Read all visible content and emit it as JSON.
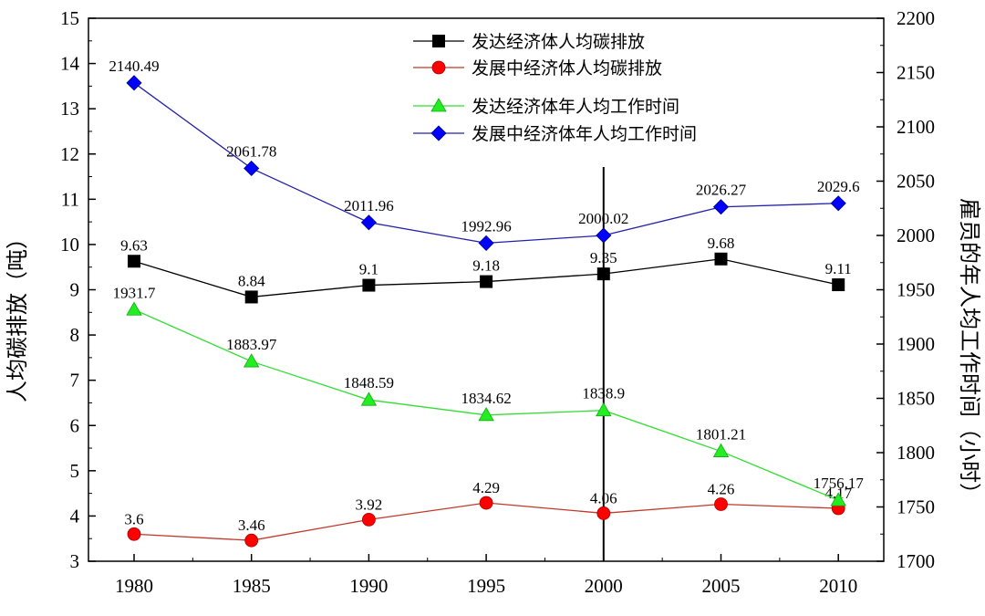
{
  "chart_data": {
    "type": "line",
    "categories": [
      "1980",
      "1985",
      "1990",
      "1995",
      "2000",
      "2005",
      "2010"
    ],
    "ylabel_left": "人均碳排放（吨）",
    "ylabel_right": "雇员的年人均工作时间（小时）",
    "ylim_left": [
      3,
      15
    ],
    "ylim_right": [
      1700,
      2200
    ],
    "yticks_left": [
      "3",
      "4",
      "5",
      "6",
      "7",
      "8",
      "9",
      "10",
      "11",
      "12",
      "13",
      "14",
      "15"
    ],
    "yticks_right": [
      "1700",
      "1750",
      "1800",
      "1850",
      "1900",
      "1950",
      "2000",
      "2050",
      "2100",
      "2150",
      "2200"
    ],
    "vertical_marker_x": "2000",
    "series": [
      {
        "name": "发达经济体人均碳排放",
        "axis": "left",
        "marker": "square",
        "color": "#000000",
        "values": [
          9.63,
          8.84,
          9.1,
          9.18,
          9.35,
          9.68,
          9.11
        ],
        "labels": [
          "9.63",
          "8.84",
          "9.1",
          "9.18",
          "9.35",
          "9.68",
          "9.11"
        ]
      },
      {
        "name": "发展中经济体人均碳排放",
        "axis": "left",
        "marker": "circle",
        "color": "#c0392b",
        "marker_color": "#ff0000",
        "values": [
          3.6,
          3.46,
          3.92,
          4.29,
          4.06,
          4.26,
          4.17
        ],
        "labels": [
          "3.6",
          "3.46",
          "3.92",
          "4.29",
          "4.06",
          "4.26",
          "4.17"
        ]
      },
      {
        "name": "发达经济体年人均工作时间",
        "axis": "right",
        "marker": "triangle",
        "color": "#33dd33",
        "marker_color": "#22ee22",
        "values": [
          1931.7,
          1883.97,
          1848.59,
          1834.62,
          1838.9,
          1801.21,
          1756.17
        ],
        "labels": [
          "1931.7",
          "1883.97",
          "1848.59",
          "1834.62",
          "1838.9",
          "1801.21",
          "1756.17"
        ]
      },
      {
        "name": "发展中经济体年人均工作时间",
        "axis": "right",
        "marker": "diamond",
        "color": "#2222aa",
        "marker_color": "#0000ff",
        "values": [
          2140.49,
          2061.78,
          2011.96,
          1992.96,
          2000.02,
          2026.27,
          2029.6
        ],
        "labels": [
          "2140.49",
          "2061.78",
          "2011.96",
          "1992.96",
          "2000.02",
          "2026.27",
          "2029.6"
        ]
      }
    ]
  }
}
